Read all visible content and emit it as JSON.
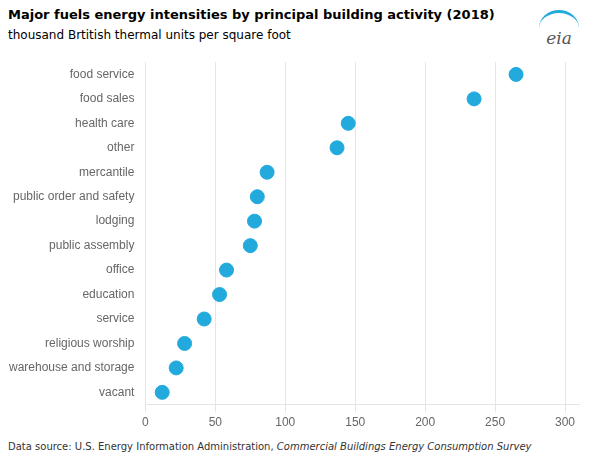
{
  "chart_data": {
    "type": "dot",
    "title": "Major fuels energy intensities by principal building activity (2018)",
    "subtitle": "thousand Brtitish thermal units per square foot",
    "categories": [
      "food service",
      "food sales",
      "health care",
      "other",
      "mercantile",
      "public order and safety",
      "lodging",
      "public assembly",
      "office",
      "education",
      "service",
      "religious worship",
      "warehouse and storage",
      "vacant"
    ],
    "values": [
      265,
      235,
      145,
      137,
      87,
      80,
      78,
      75,
      58,
      53,
      42,
      28,
      22,
      12
    ],
    "color": "#22aadd",
    "xlim": [
      0,
      310
    ],
    "xticks": [
      0,
      50,
      100,
      150,
      200,
      250,
      300
    ],
    "grid": true,
    "annotations": [
      "Data source: U.S. Energy Information Administration,",
      "Commercial Buildings Energy Consumption Survey",
      "eia"
    ]
  }
}
